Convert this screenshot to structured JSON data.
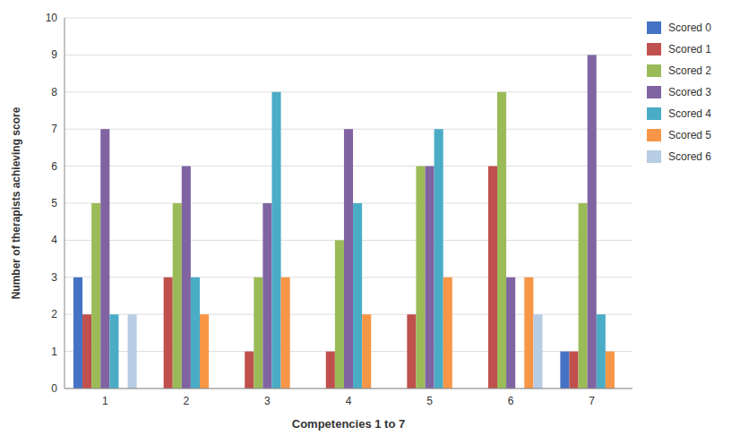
{
  "chart_data": {
    "type": "bar",
    "categories": [
      "1",
      "2",
      "3",
      "4",
      "5",
      "6",
      "7"
    ],
    "series": [
      {
        "name": "Scored 0",
        "color": "#4472C4",
        "values": [
          3,
          0,
          0,
          0,
          0,
          0,
          1
        ]
      },
      {
        "name": "Scored 1",
        "color": "#C0504D",
        "values": [
          2,
          3,
          1,
          1,
          2,
          6,
          1
        ]
      },
      {
        "name": "Scored 2",
        "color": "#9BBB59",
        "values": [
          5,
          5,
          3,
          4,
          6,
          8,
          5
        ]
      },
      {
        "name": "Scored 3",
        "color": "#8064A2",
        "values": [
          7,
          6,
          5,
          7,
          6,
          3,
          9
        ]
      },
      {
        "name": "Scored 4",
        "color": "#4BACC6",
        "values": [
          2,
          3,
          8,
          5,
          7,
          0,
          2
        ]
      },
      {
        "name": "Scored 5",
        "color": "#F79646",
        "values": [
          0,
          2,
          3,
          2,
          3,
          3,
          1
        ]
      },
      {
        "name": "Scored 6",
        "color": "#B8CCE4",
        "values": [
          2,
          0,
          0,
          0,
          0,
          2,
          0
        ]
      }
    ],
    "x_label": "Competencies 1 to 7",
    "y_label": "Number of therapists achieving score",
    "ylim": [
      0,
      10
    ],
    "yticks": [
      0,
      1,
      2,
      3,
      4,
      5,
      6,
      7,
      8,
      9,
      10
    ],
    "grid": true,
    "legend": "right"
  }
}
